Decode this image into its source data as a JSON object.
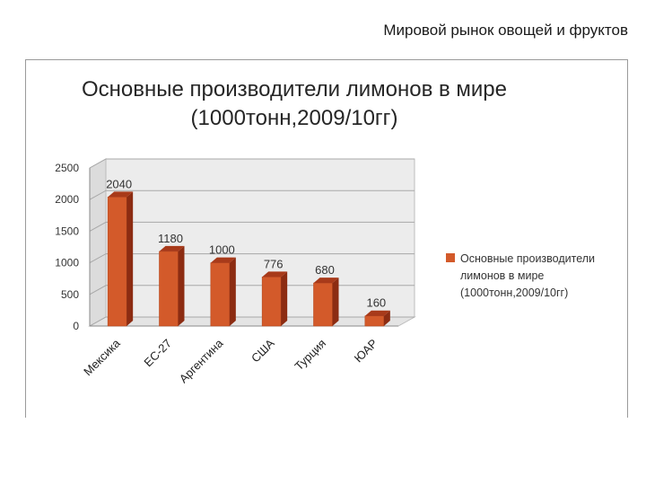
{
  "slide": {
    "title": "Мировой рынок овощей и фруктов"
  },
  "chart_data": {
    "type": "bar",
    "title": "Основные производители лимонов в мире (1000тонн,2009/10гг)",
    "title_lines": [
      "Основные производители лимонов в мире",
      "(1000тонн,2009/10гг)"
    ],
    "categories": [
      "Мексика",
      "ЕС-27",
      "Аргентина",
      "США",
      "Турция",
      "ЮАР"
    ],
    "series": [
      {
        "name": "Основные производители лимонов в мире (1000тонн,2009/10гг)",
        "legend_lines": [
          "Основные производители",
          "лимонов в мире",
          "(1000тонн,2009/10гг)"
        ],
        "values": [
          2040,
          1180,
          1000,
          776,
          680,
          160
        ],
        "color": "#d35a2a"
      }
    ],
    "data_labels": [
      "2040",
      "1180",
      "1000",
      "776",
      "680",
      "160"
    ],
    "yticks": [
      "0",
      "500",
      "1000",
      "1500",
      "2000",
      "2500"
    ],
    "ylim": [
      0,
      2500
    ],
    "grid": true,
    "legend_position": "right",
    "colors": {
      "bar_front": "#d35a2a",
      "bar_top": "#a83a1a",
      "bar_side": "#8c2c12",
      "wall": "#e4e4e4"
    }
  }
}
